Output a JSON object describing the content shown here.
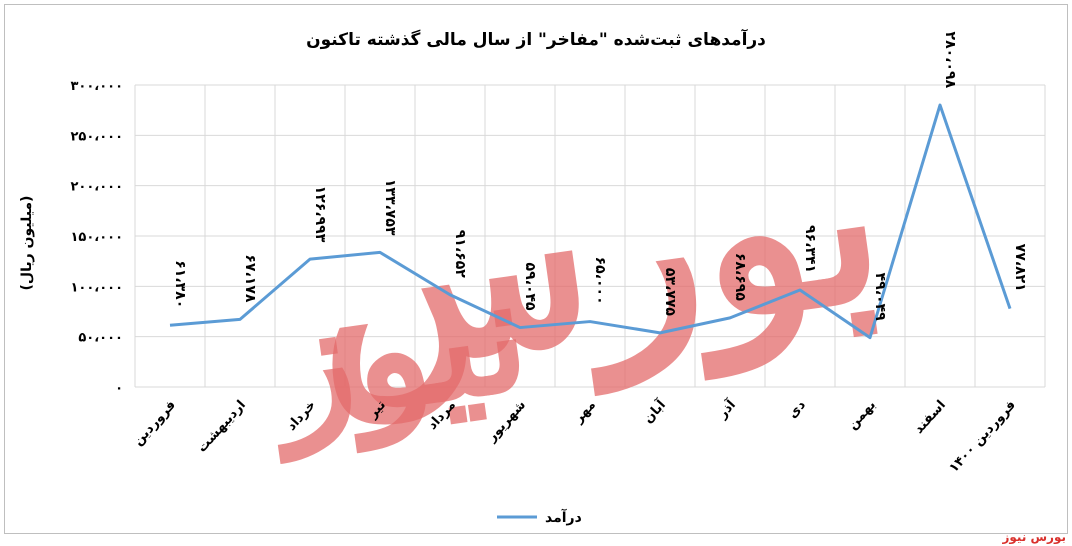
{
  "chart_data": {
    "type": "line",
    "title": "درآمدهای ثبت‌شده \"مفاخر\" از سال مالی گذشته تاکنون",
    "ylabel": "(میلیون ریال)",
    "xlabel": "",
    "ylim": [
      0,
      300000
    ],
    "yticks": [
      0,
      50000,
      100000,
      150000,
      200000,
      250000,
      300000
    ],
    "ytick_labels": [
      "۰",
      "۵۰،۰۰۰",
      "۱۰۰،۰۰۰",
      "۱۵۰،۰۰۰",
      "۲۰۰،۰۰۰",
      "۲۵۰،۰۰۰",
      "۳۰۰،۰۰۰"
    ],
    "categories": [
      "فروردین",
      "اردیبهشت",
      "خرداد",
      "تیر",
      "مرداد",
      "شهریور",
      "مهر",
      "آبان",
      "آذر",
      "دی",
      "بهمن",
      "اسفند",
      "فروردین ۱۴۰۰"
    ],
    "series": [
      {
        "name": "درآمد",
        "color": "#5b9bd5",
        "values": [
          61380,
          67178,
          126993,
          133753,
          91652,
          59045,
          65000,
          53775,
          68695,
          96341,
          49049,
          280098,
          77821
        ],
        "data_labels": [
          "۶۱،۳۸۰",
          "۶۷،۱۷۸",
          "۱۲۶،۹۹۳",
          "۱۳۳،۷۵۳",
          "۹۱،۶۵۲",
          "۵۹،۰۴۵",
          "۶۵،۰۰۰",
          "۵۳،۷۷۵",
          "۶۸،۶۹۵",
          "۹۶،۳۴۱",
          "۴۹،۰۴۹",
          "۲۸۰،۰۹۸",
          "۷۷،۸۲۱"
        ]
      }
    ],
    "grid": true,
    "legend_position": "bottom"
  },
  "watermark": {
    "main": "بورس",
    "secondary": "نیوز",
    "color": "#e46b6b"
  },
  "source_label": "بورس نیوز"
}
